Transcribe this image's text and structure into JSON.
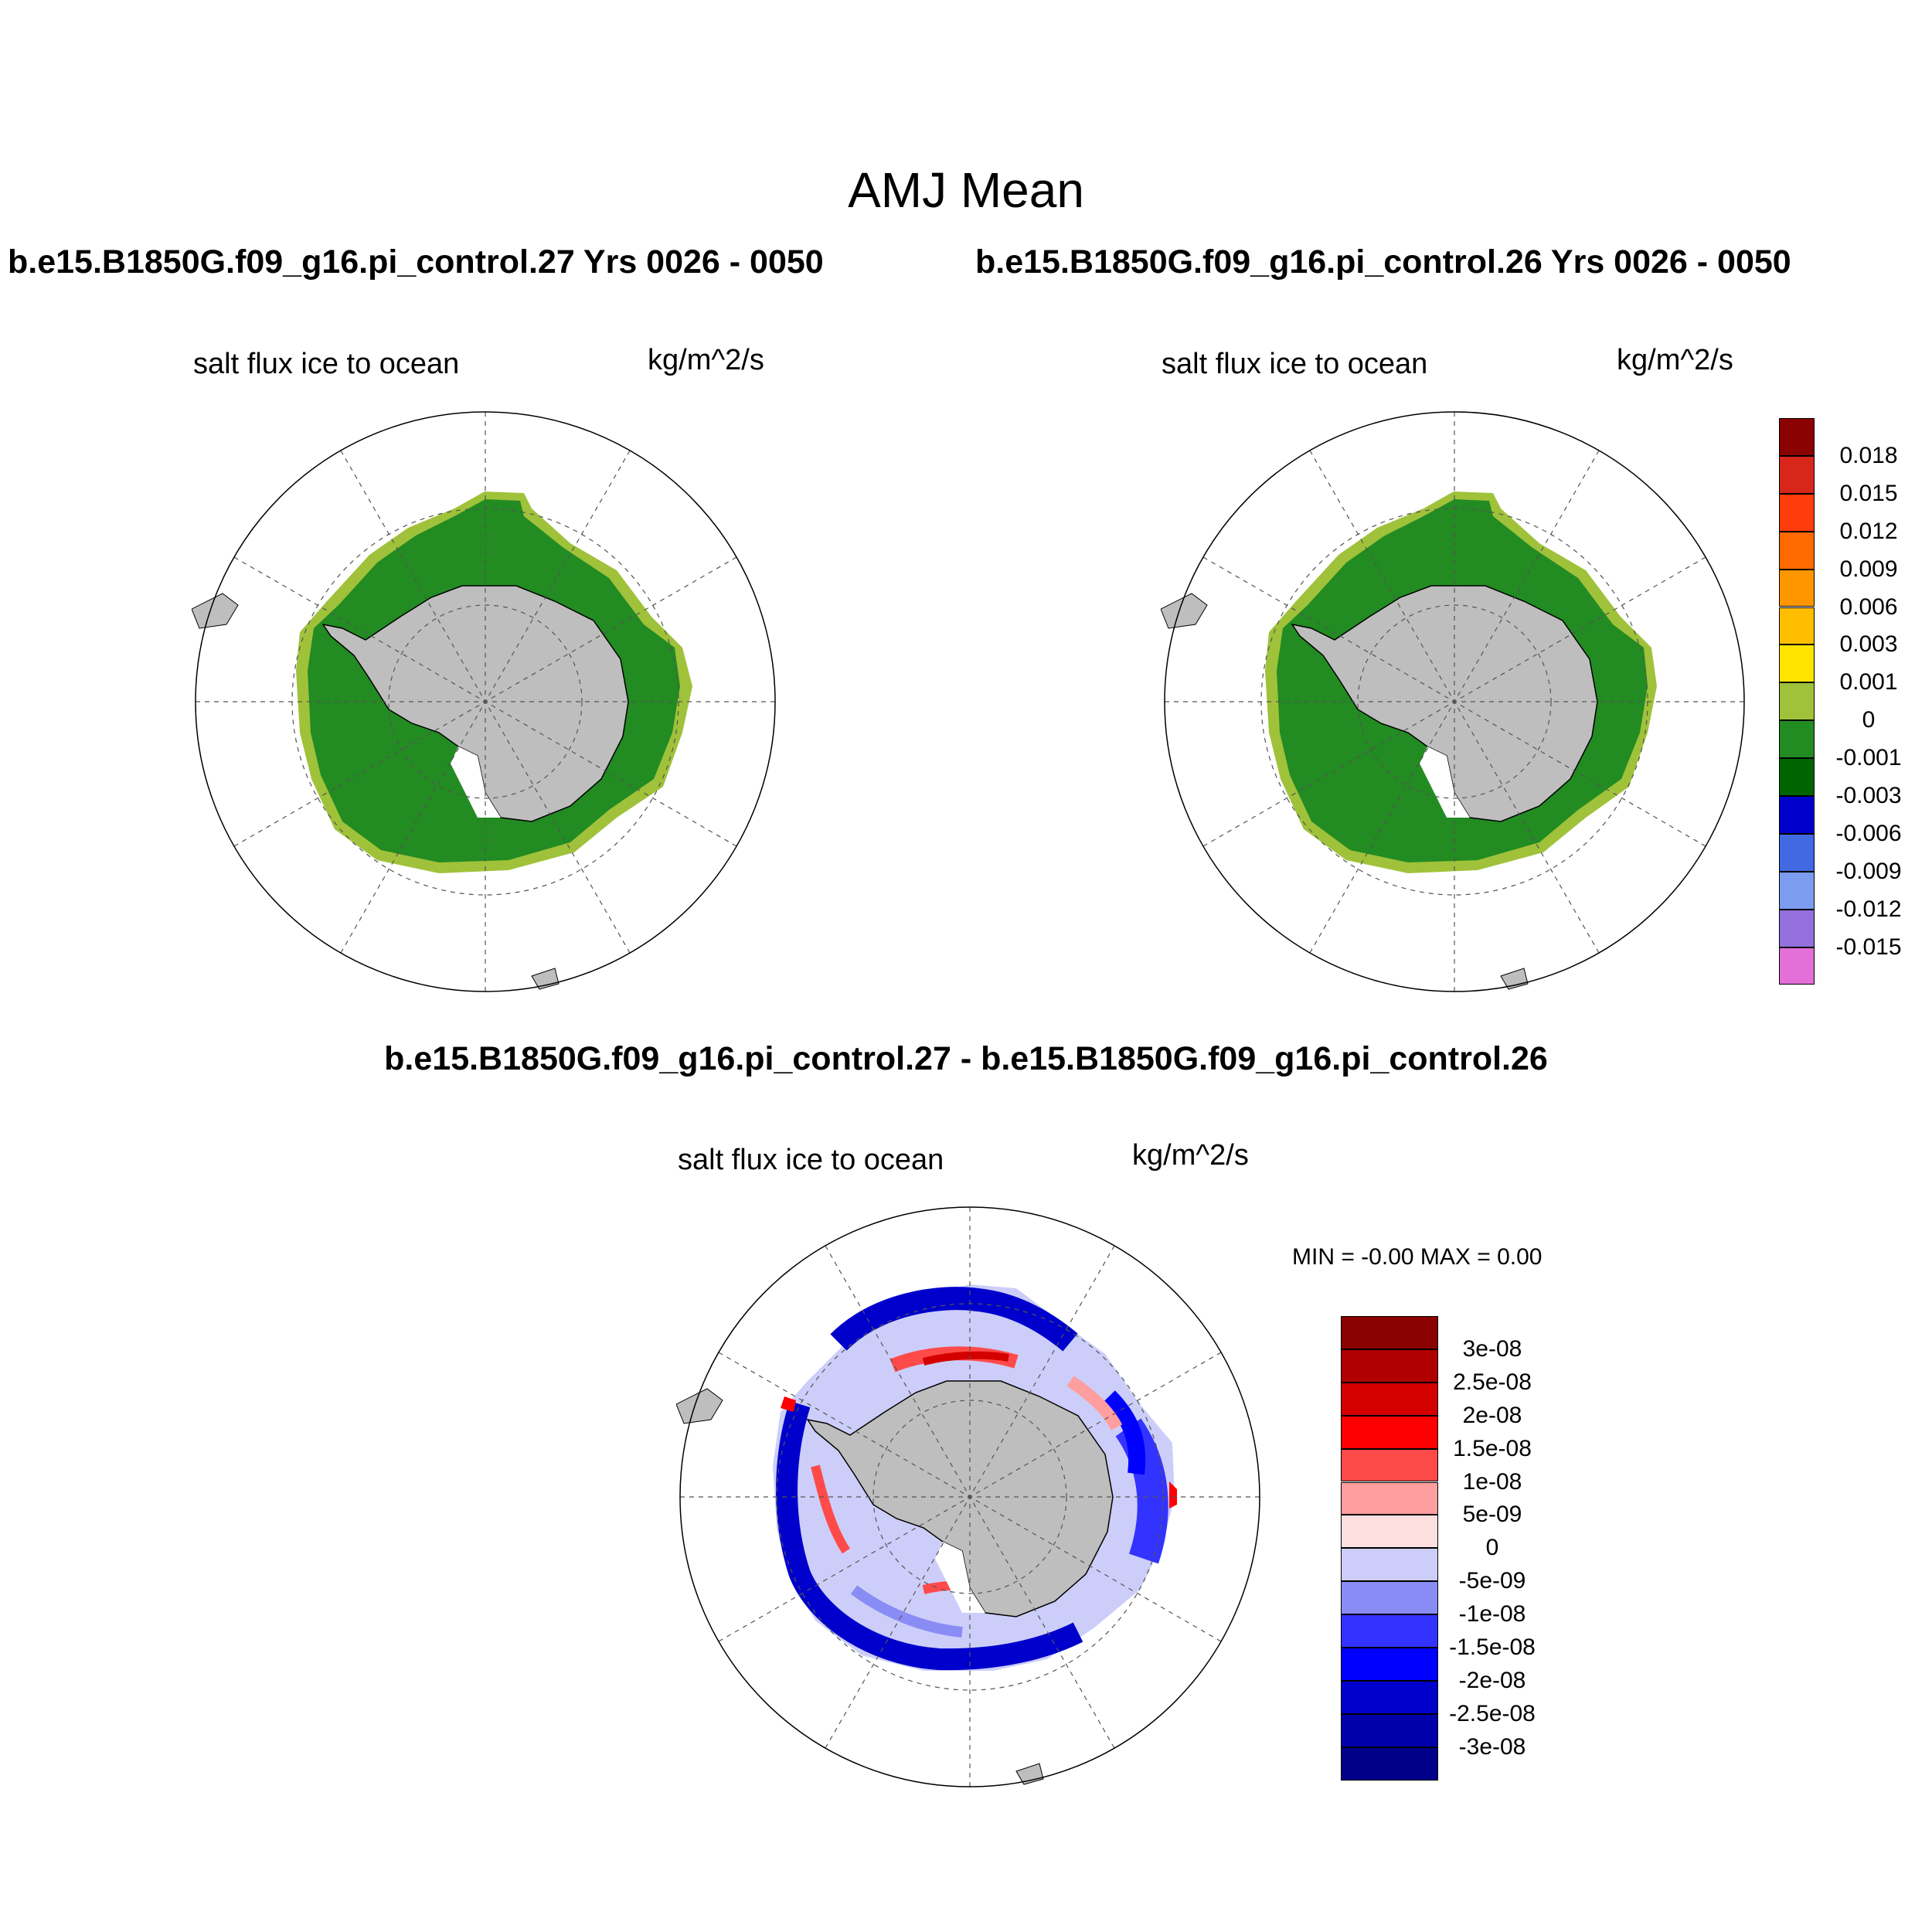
{
  "title": "AMJ Mean",
  "panels": [
    {
      "case": "b.e15.B1850G.f09_g16.pi_control.27  Yrs 0026 - 0050",
      "variable": "salt flux ice to ocean",
      "units": "kg/m^2/s"
    },
    {
      "case": "b.e15.B1850G.f09_g16.pi_control.26  Yrs 0026 - 0050",
      "variable": "salt flux ice to ocean",
      "units": "kg/m^2/s"
    },
    {
      "case": "b.e15.B1850G.f09_g16.pi_control.27 - b.e15.B1850G.f09_g16.pi_control.26",
      "variable": "salt flux ice to ocean",
      "units": "kg/m^2/s",
      "min_max": "MIN =  -0.00 MAX =   0.00"
    }
  ],
  "colorbar_main": {
    "labels": [
      "0.018",
      "0.015",
      "0.012",
      "0.009",
      "0.006",
      "0.003",
      "0.001",
      "0",
      "-0.001",
      "-0.003",
      "-0.006",
      "-0.009",
      "-0.012",
      "-0.015"
    ],
    "colors": [
      "#8b0000",
      "#d8261a",
      "#ff3d0c",
      "#ff6a00",
      "#ff9600",
      "#ffbe00",
      "#ffe400",
      "#9fc23a",
      "#228b22",
      "#006400",
      "#0000cd",
      "#4169e1",
      "#7c9cf0",
      "#9370db",
      "#e36fd8"
    ]
  },
  "colorbar_diff": {
    "labels": [
      "3e-08",
      "2.5e-08",
      "2e-08",
      "1.5e-08",
      "1e-08",
      "5e-09",
      "0",
      "-5e-09",
      "-1e-08",
      "-1.5e-08",
      "-2e-08",
      "-2.5e-08",
      "-3e-08"
    ],
    "colors": [
      "#8b0000",
      "#b00000",
      "#d40000",
      "#ff0000",
      "#ff4a4a",
      "#ff9e9e",
      "#fde0e0",
      "#cccef9",
      "#8a8cf5",
      "#3333ff",
      "#0000ff",
      "#0000cc",
      "#0000aa",
      "#00008a"
    ]
  },
  "colors": {
    "land": "#bebebe",
    "ice_main": "#228b22",
    "ice_edge": "#9fc23a",
    "diff_pos": "#ff0000",
    "diff_neg": "#0000ff"
  }
}
